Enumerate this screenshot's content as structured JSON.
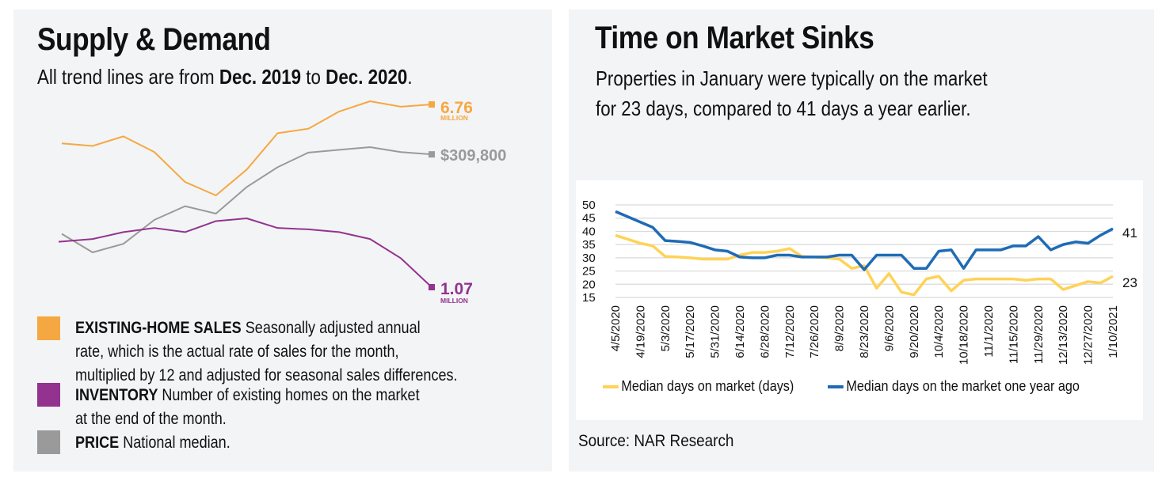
{
  "left": {
    "title": "Supply & Demand",
    "subtitle_parts": [
      "All trend lines are from ",
      "Dec. 2019",
      " to ",
      "Dec. 2020",
      "."
    ],
    "end_labels": {
      "sales_value": "6.76",
      "sales_unit": "MILLION",
      "price_value": "$309,800",
      "inventory_value": "1.07",
      "inventory_unit": "MILLION"
    },
    "legend": [
      {
        "key": "sales",
        "head": "EXISTING-HOME SALES",
        "text_lines": [
          " Seasonally adjusted annual",
          "rate, which is the actual rate of sales for the month,",
          "multiplied by 12 and adjusted for seasonal sales differences."
        ]
      },
      {
        "key": "inventory",
        "head": "INVENTORY",
        "text_lines": [
          " Number of existing homes on the market",
          "at the end of the month."
        ]
      },
      {
        "key": "price",
        "head": "PRICE",
        "text_lines": [
          " National median."
        ]
      }
    ]
  },
  "right": {
    "title": "Time on Market Sinks",
    "subtitle_lines": [
      "Properties in January were typically on the market",
      "for 23 days, compared to 41 days a year earlier."
    ],
    "legend": [
      {
        "key": "current",
        "label": "Median days on market (days)"
      },
      {
        "key": "year_ago",
        "label": "Median days on the market one year ago"
      }
    ],
    "end_labels": {
      "year_ago": "41",
      "current": "23"
    },
    "source": "Source: NAR Research"
  },
  "colors": {
    "sales": "#f5a841",
    "inventory": "#93338f",
    "price": "#9a9a9a",
    "current": "#ffd257",
    "year_ago": "#1f6bb5",
    "panel_bg": "#f3f4f6",
    "grid": "#d9d9d9"
  },
  "chart_data": [
    {
      "type": "line",
      "title": "Supply & Demand",
      "subtitle": "All trend lines are from Dec. 2019 to Dec. 2020.",
      "x": [
        "Dec 2019",
        "Jan 2020",
        "Feb 2020",
        "Mar 2020",
        "Apr 2020",
        "May 2020",
        "Jun 2020",
        "Jul 2020",
        "Aug 2020",
        "Sep 2020",
        "Oct 2020",
        "Nov 2020",
        "Dec 2020"
      ],
      "axes_shown": false,
      "grid": false,
      "independent_scales": true,
      "series": [
        {
          "name": "EXISTING-HOME SALES",
          "unit": "million (SAAR)",
          "values": [
            5.54,
            5.46,
            5.76,
            5.27,
            4.33,
            3.91,
            4.72,
            5.86,
            6.0,
            6.54,
            6.86,
            6.69,
            6.76
          ],
          "end_label": "6.76 MILLION"
        },
        {
          "name": "PRICE",
          "unit": "USD",
          "values": [
            274500,
            266300,
            270100,
            280700,
            286800,
            283500,
            295300,
            304100,
            310600,
            311800,
            313000,
            310800,
            309800
          ],
          "end_label": "$309,800"
        },
        {
          "name": "INVENTORY",
          "unit": "million",
          "values": [
            1.4,
            1.42,
            1.47,
            1.5,
            1.47,
            1.55,
            1.57,
            1.5,
            1.49,
            1.47,
            1.42,
            1.28,
            1.07
          ],
          "end_label": "1.07 MILLION"
        }
      ],
      "legend_position": "bottom"
    },
    {
      "type": "line",
      "title": "Time on Market Sinks",
      "subtitle": "Properties in January were typically on the market for 23 days, compared to 41 days a year earlier.",
      "xlabel": "",
      "ylabel": "",
      "ylim": [
        15,
        50
      ],
      "yticks": [
        15,
        20,
        25,
        30,
        35,
        40,
        45,
        50
      ],
      "grid": true,
      "x_tick_labels": [
        "4/5/2020",
        "4/19/2020",
        "5/3/2020",
        "5/17/2020",
        "5/31/2020",
        "6/14/2020",
        "6/28/2020",
        "7/12/2020",
        "7/26/2020",
        "8/9/2020",
        "8/23/2020",
        "9/6/2020",
        "9/20/2020",
        "10/4/2020",
        "10/18/2020",
        "11/1/2020",
        "11/15/2020",
        "11/29/2020",
        "12/13/2020",
        "12/27/2020",
        "1/10/2021"
      ],
      "x_points": 41,
      "series": [
        {
          "name": "Median days on market (days)",
          "values": [
            38.5,
            37,
            35.5,
            34.5,
            30.5,
            30.3,
            30,
            29.5,
            29.5,
            29.5,
            31,
            32,
            32,
            32.5,
            33.5,
            30.5,
            30.3,
            30,
            29.5,
            26,
            27,
            18.5,
            24,
            17,
            16,
            22,
            23,
            17.5,
            21.5,
            22,
            22,
            22,
            22,
            21.5,
            22,
            22,
            18,
            19.5,
            21,
            20.5,
            23
          ],
          "end_label": "23"
        },
        {
          "name": "Median days on the market one year ago",
          "values": [
            47.5,
            45.5,
            43.5,
            41.5,
            36.5,
            36.2,
            35.8,
            34.5,
            33,
            32.5,
            30.3,
            30,
            30,
            31,
            31,
            30.3,
            30.3,
            30.3,
            31,
            31,
            25.5,
            31,
            31,
            31,
            26,
            26,
            32.5,
            33,
            26,
            33,
            33,
            33,
            34.5,
            34.5,
            38,
            33,
            35,
            36,
            35.5,
            38.5,
            41
          ],
          "end_label": "41"
        }
      ],
      "legend_position": "bottom",
      "source": "Source: NAR Research"
    }
  ]
}
